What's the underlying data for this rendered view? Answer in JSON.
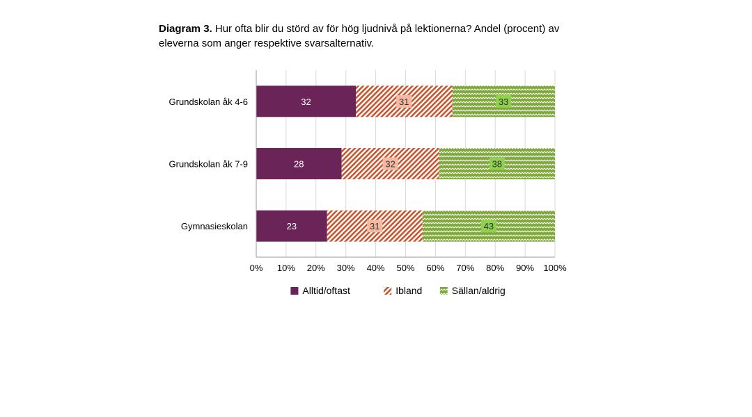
{
  "caption": {
    "lead": "Diagram 3.",
    "text": " Hur ofta blir du störd av för hög ljudnivå på lektionerna? Andel (procent) av eleverna som anger respektive svarsalternativ."
  },
  "chart_data": {
    "type": "bar",
    "orientation": "horizontal",
    "stacked": true,
    "categories": [
      "Grundskolan åk 4-6",
      "Grundskolan åk 7-9",
      "Gymnasieskolan"
    ],
    "series": [
      {
        "name": "Alltid/oftast",
        "values": [
          32,
          28,
          23
        ],
        "color": "#6b2458",
        "pattern": "solid"
      },
      {
        "name": "Ibland",
        "values": [
          31,
          32,
          31
        ],
        "color": "#c8552d",
        "pattern": "diagonal-hatch"
      },
      {
        "name": "Sällan/aldrig",
        "values": [
          33,
          38,
          43
        ],
        "color": "#7ea83a",
        "pattern": "zigzag"
      }
    ],
    "xlim": [
      0,
      100
    ],
    "xticks": [
      "0%",
      "10%",
      "20%",
      "30%",
      "40%",
      "50%",
      "60%",
      "70%",
      "80%",
      "90%",
      "100%"
    ],
    "grid": true,
    "legend": "bottom",
    "title": "",
    "xlabel": "",
    "ylabel": ""
  }
}
